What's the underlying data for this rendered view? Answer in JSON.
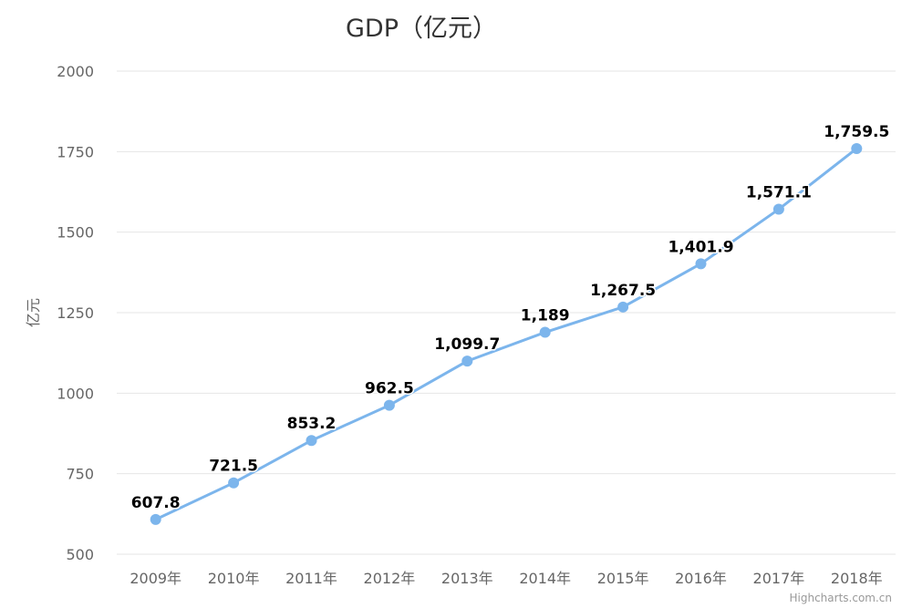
{
  "chart_data": {
    "type": "line",
    "title": "GDP（亿元）",
    "ylabel": "亿元",
    "xlabel": "",
    "categories": [
      "2009年",
      "2010年",
      "2011年",
      "2012年",
      "2013年",
      "2014年",
      "2015年",
      "2016年",
      "2017年",
      "2018年"
    ],
    "series": [
      {
        "values": [
          607.8,
          721.5,
          853.2,
          962.5,
          1099.7,
          1189,
          1267.5,
          1401.9,
          1571.1,
          1759.5
        ],
        "labels": [
          "607.8",
          "721.5",
          "853.2",
          "962.5",
          "1,099.7",
          "1,189",
          "1,267.5",
          "1,401.9",
          "1,571.1",
          "1,759.5"
        ]
      }
    ],
    "ylim": [
      500,
      2000
    ],
    "yticks": [
      500,
      750,
      1000,
      1250,
      1500,
      1750,
      2000
    ],
    "grid": true,
    "legend": "none",
    "colors": {
      "series": "#7cb5ec",
      "grid": "#e6e6e6",
      "text": "#666666"
    }
  },
  "credit": "Highcharts.com.cn"
}
